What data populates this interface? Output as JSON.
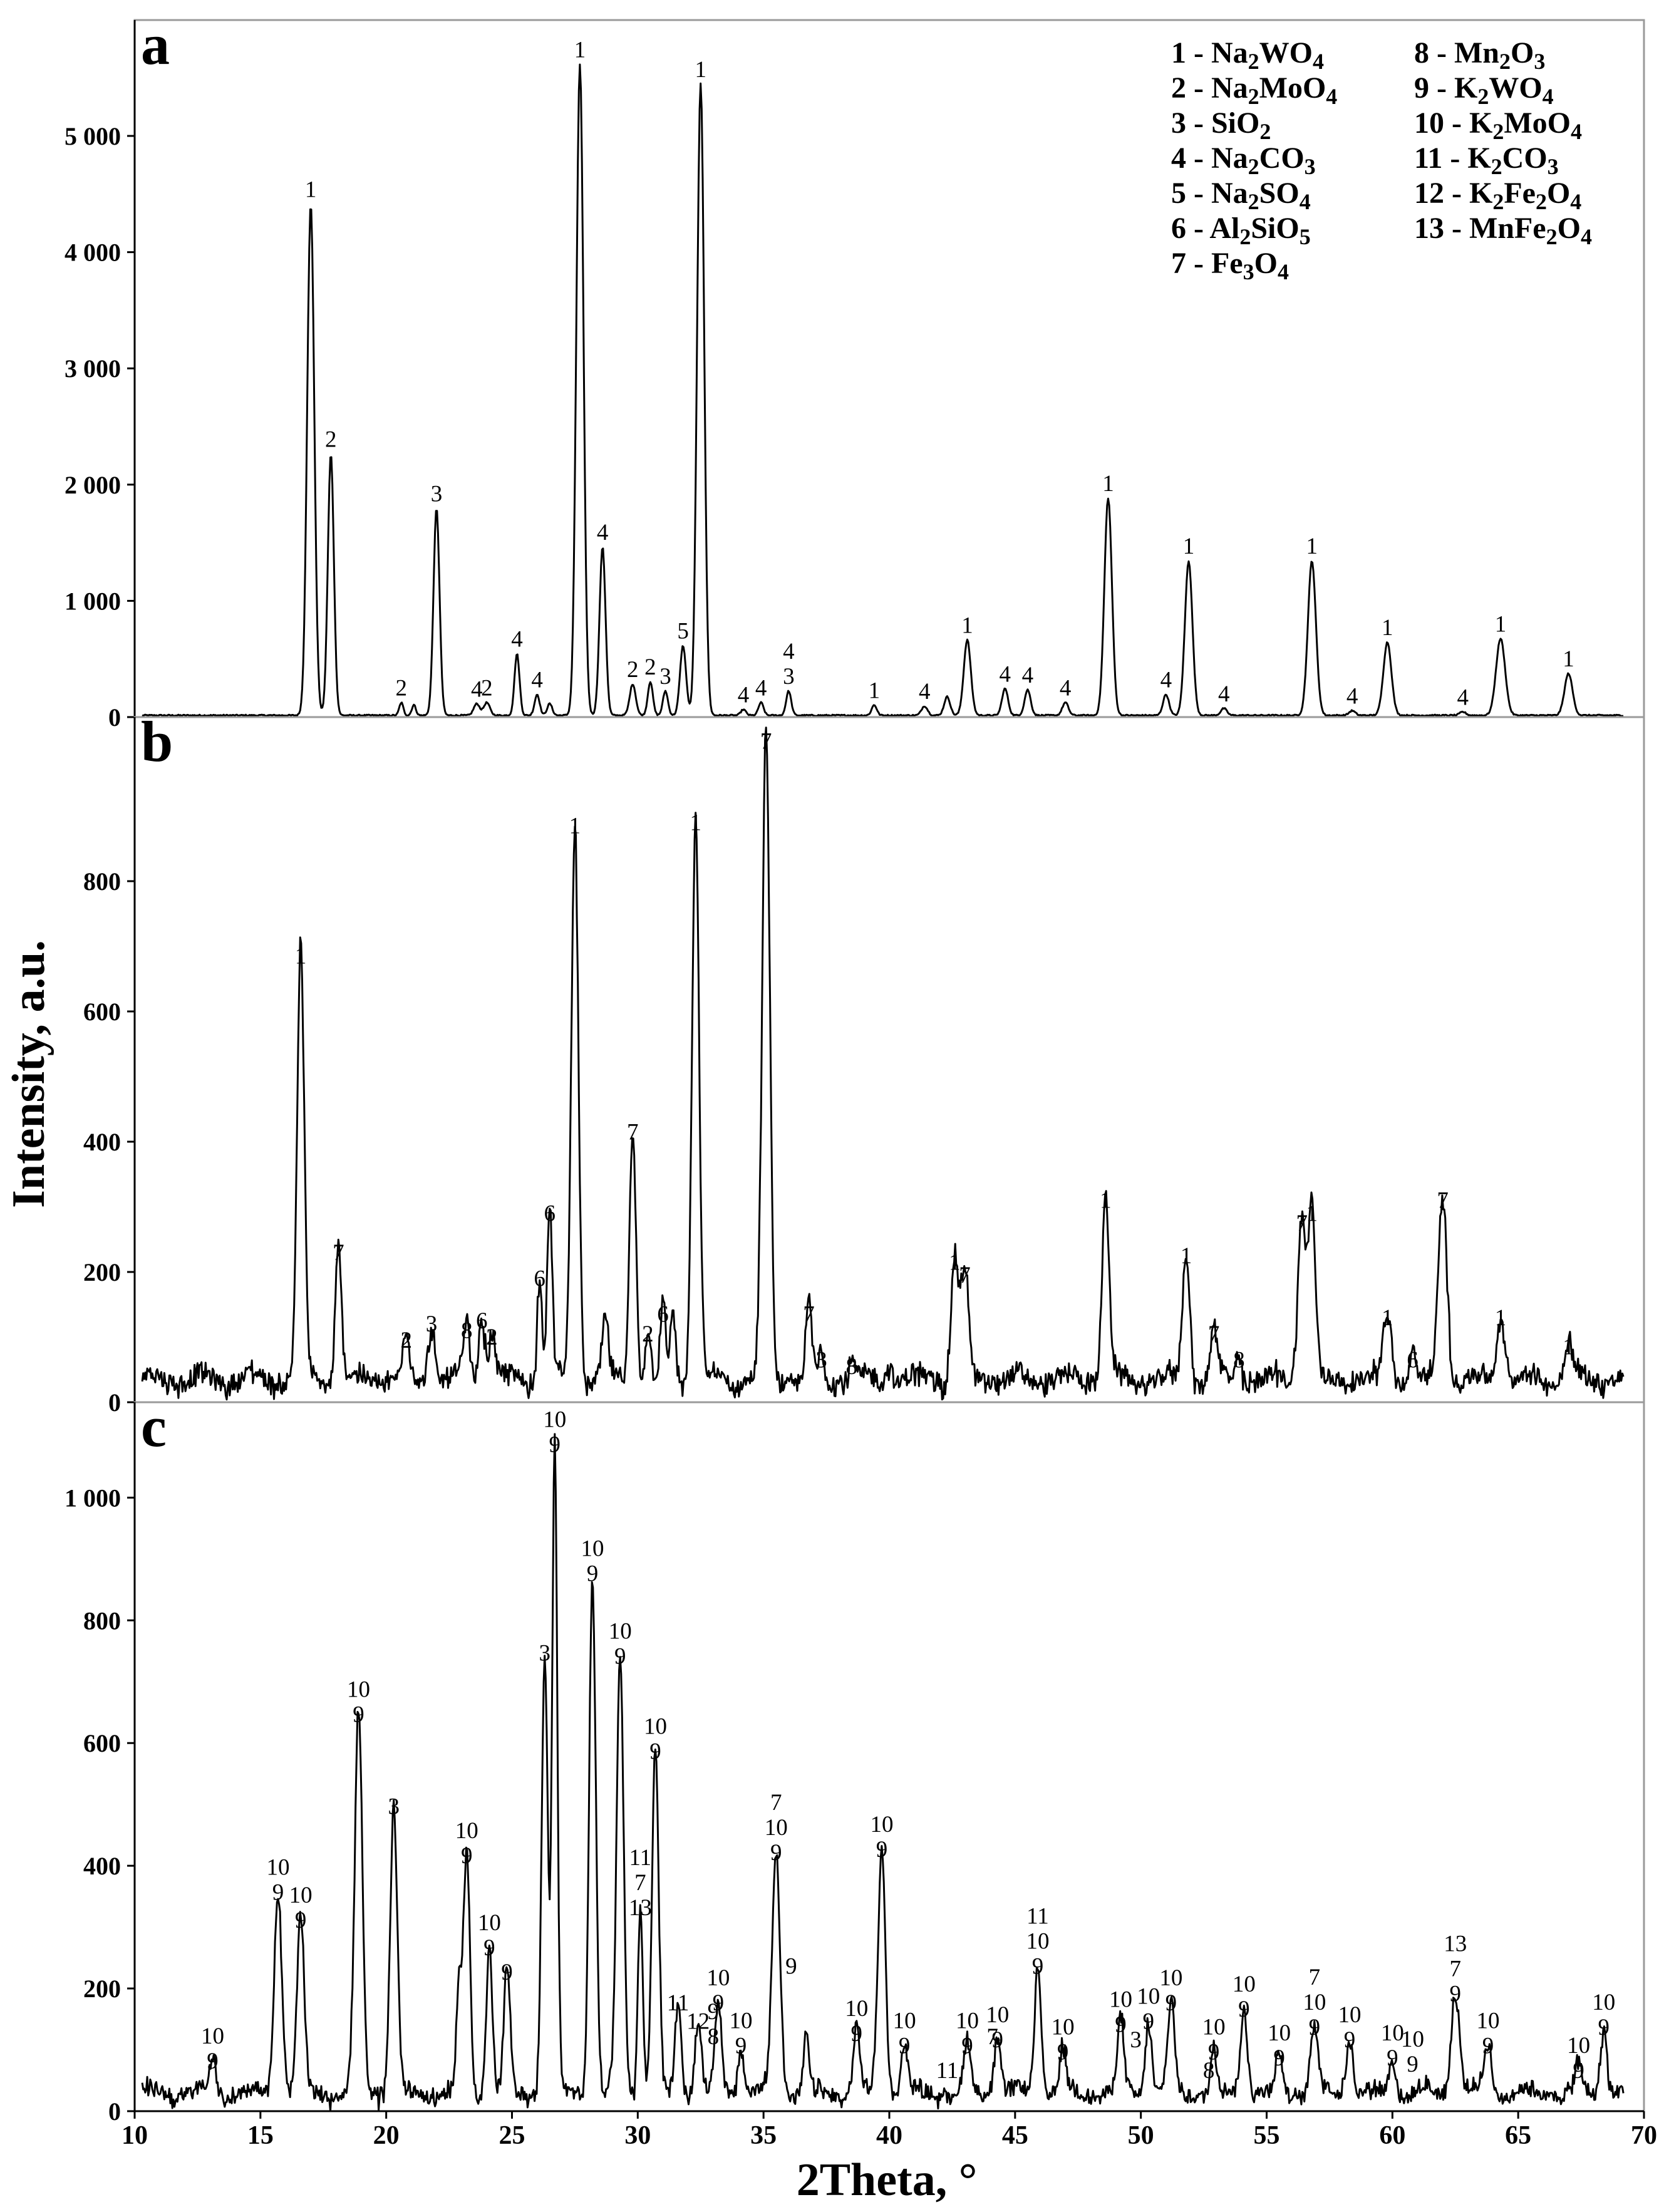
{
  "chart_data": {
    "type": "line",
    "xlabel": "2Theta, °",
    "ylabel": "Intensity, a.u.",
    "xlim": [
      10,
      70
    ],
    "x_ticks": [
      10,
      15,
      20,
      25,
      30,
      35,
      40,
      45,
      50,
      55,
      60,
      65,
      70
    ],
    "x_tick_labels": [
      "10",
      "15",
      "20",
      "25",
      "30",
      "35",
      "40",
      "45",
      "50",
      "55",
      "60",
      "65",
      "70"
    ],
    "legend": {
      "position": "top-right",
      "entries": [
        [
          "1 - Na",
          "2",
          "WO",
          "4"
        ],
        [
          "2 - Na",
          "2",
          "MoO",
          "4"
        ],
        [
          "3 - SiO",
          "2"
        ],
        [
          "4 - Na",
          "2",
          "CO",
          "3"
        ],
        [
          "5 - Na",
          "2",
          "SO",
          "4"
        ],
        [
          "6 - Al",
          "2",
          "SiO",
          "5"
        ],
        [
          "7 - Fe",
          "3",
          "O",
          "4"
        ],
        [
          "8 - Mn",
          "2",
          "O",
          "3"
        ],
        [
          "9 - K",
          "2",
          "WO",
          "4"
        ],
        [
          "10 - K",
          "2",
          "MoO",
          "4"
        ],
        [
          "11 - K",
          "2",
          "CO",
          "3"
        ],
        [
          "12 - K",
          "2",
          "Fe",
          "2",
          "O",
          "4"
        ],
        [
          "13 - MnFe",
          "2",
          "O",
          "4"
        ]
      ]
    },
    "panels": [
      {
        "label": "a",
        "ylim": [
          0,
          5900
        ],
        "y_ticks": [
          0,
          1000,
          2000,
          3000,
          4000,
          5000
        ],
        "y_tick_labels": [
          "0",
          "1 000",
          "2 000",
          "3 000",
          "4 000",
          "5 000"
        ],
        "baseline": 15,
        "peaks": [
          {
            "x": 17.0,
            "y": 4400,
            "w": 0.14,
            "label": "1"
          },
          {
            "x": 17.8,
            "y": 2250,
            "w": 0.12,
            "label": "2"
          },
          {
            "x": 20.6,
            "y": 110,
            "w": 0.08,
            "label": "2"
          },
          {
            "x": 21.1,
            "y": 90,
            "w": 0.08,
            "label": ""
          },
          {
            "x": 22.0,
            "y": 1780,
            "w": 0.12,
            "label": "3"
          },
          {
            "x": 23.6,
            "y": 100,
            "w": 0.12,
            "label": "4"
          },
          {
            "x": 24.0,
            "y": 110,
            "w": 0.12,
            "label": "2"
          },
          {
            "x": 25.2,
            "y": 530,
            "w": 0.1,
            "label": "4"
          },
          {
            "x": 26.0,
            "y": 180,
            "w": 0.1,
            "label": "4"
          },
          {
            "x": 26.5,
            "y": 100,
            "w": 0.1,
            "label": ""
          },
          {
            "x": 27.7,
            "y": 5600,
            "w": 0.14,
            "label": "1"
          },
          {
            "x": 28.6,
            "y": 1450,
            "w": 0.12,
            "label": "4"
          },
          {
            "x": 29.8,
            "y": 270,
            "w": 0.12,
            "label": "2"
          },
          {
            "x": 30.5,
            "y": 290,
            "w": 0.1,
            "label": "2"
          },
          {
            "x": 31.1,
            "y": 210,
            "w": 0.1,
            "label": "3"
          },
          {
            "x": 31.8,
            "y": 600,
            "w": 0.12,
            "label": "5"
          },
          {
            "x": 32.5,
            "y": 5430,
            "w": 0.14,
            "label": "1"
          },
          {
            "x": 34.2,
            "y": 50,
            "w": 0.1,
            "label": "4"
          },
          {
            "x": 34.9,
            "y": 110,
            "w": 0.1,
            "label": "4"
          },
          {
            "x": 36.0,
            "y": 210,
            "w": 0.1,
            "label": "4\n3"
          },
          {
            "x": 39.4,
            "y": 90,
            "w": 0.1,
            "label": "1"
          },
          {
            "x": 41.4,
            "y": 80,
            "w": 0.12,
            "label": "4"
          },
          {
            "x": 42.3,
            "y": 160,
            "w": 0.12,
            "label": ""
          },
          {
            "x": 43.1,
            "y": 650,
            "w": 0.14,
            "label": "1"
          },
          {
            "x": 44.6,
            "y": 230,
            "w": 0.12,
            "label": "4"
          },
          {
            "x": 45.5,
            "y": 220,
            "w": 0.12,
            "label": "4"
          },
          {
            "x": 47.0,
            "y": 110,
            "w": 0.12,
            "label": "4"
          },
          {
            "x": 48.7,
            "y": 1870,
            "w": 0.15,
            "label": "1"
          },
          {
            "x": 51.0,
            "y": 180,
            "w": 0.12,
            "label": "4"
          },
          {
            "x": 51.9,
            "y": 1330,
            "w": 0.15,
            "label": "1"
          },
          {
            "x": 53.3,
            "y": 60,
            "w": 0.12,
            "label": "4"
          },
          {
            "x": 56.8,
            "y": 1330,
            "w": 0.16,
            "label": "1"
          },
          {
            "x": 58.4,
            "y": 40,
            "w": 0.12,
            "label": "4"
          },
          {
            "x": 59.8,
            "y": 630,
            "w": 0.16,
            "label": "1"
          },
          {
            "x": 62.8,
            "y": 30,
            "w": 0.12,
            "label": "4"
          },
          {
            "x": 64.3,
            "y": 660,
            "w": 0.18,
            "label": "1"
          },
          {
            "x": 67.0,
            "y": 360,
            "w": 0.16,
            "label": "1"
          }
        ]
      },
      {
        "label": "b",
        "ylim": [
          0,
          1000
        ],
        "y_ticks": [
          0,
          200,
          400,
          600,
          800
        ],
        "y_tick_labels": [
          "0",
          "200",
          "400",
          "600",
          "800"
        ],
        "baseline": 35,
        "peaks": [
          {
            "x": 16.6,
            "y": 660,
            "w": 0.14,
            "label": "1"
          },
          {
            "x": 18.1,
            "y": 205,
            "w": 0.12,
            "label": "7"
          },
          {
            "x": 20.8,
            "y": 70,
            "w": 0.12,
            "label": "2"
          },
          {
            "x": 21.8,
            "y": 95,
            "w": 0.12,
            "label": "3"
          },
          {
            "x": 23.2,
            "y": 85,
            "w": 0.12,
            "label": "8"
          },
          {
            "x": 23.8,
            "y": 100,
            "w": 0.12,
            "label": "6"
          },
          {
            "x": 24.2,
            "y": 75,
            "w": 0.12,
            "label": "2"
          },
          {
            "x": 26.1,
            "y": 165,
            "w": 0.1,
            "label": "6"
          },
          {
            "x": 26.5,
            "y": 265,
            "w": 0.1,
            "label": "6"
          },
          {
            "x": 27.5,
            "y": 860,
            "w": 0.14,
            "label": "1"
          },
          {
            "x": 28.7,
            "y": 90,
            "w": 0.12,
            "label": ""
          },
          {
            "x": 29.8,
            "y": 390,
            "w": 0.13,
            "label": "7"
          },
          {
            "x": 30.4,
            "y": 80,
            "w": 0.1,
            "label": "2"
          },
          {
            "x": 31.0,
            "y": 110,
            "w": 0.1,
            "label": "6"
          },
          {
            "x": 31.4,
            "y": 110,
            "w": 0.1,
            "label": ""
          },
          {
            "x": 32.3,
            "y": 865,
            "w": 0.14,
            "label": "1"
          },
          {
            "x": 35.1,
            "y": 990,
            "w": 0.15,
            "label": "7"
          },
          {
            "x": 36.8,
            "y": 110,
            "w": 0.12,
            "label": "7"
          },
          {
            "x": 37.3,
            "y": 40,
            "w": 0.1,
            "label": "3"
          },
          {
            "x": 38.5,
            "y": 30,
            "w": 0.1,
            "label": "8"
          },
          {
            "x": 40.0,
            "y": 30,
            "w": 0.12,
            "label": ""
          },
          {
            "x": 42.6,
            "y": 190,
            "w": 0.14,
            "label": "1"
          },
          {
            "x": 43.0,
            "y": 170,
            "w": 0.14,
            "label": "7"
          },
          {
            "x": 48.6,
            "y": 285,
            "w": 0.14,
            "label": "1"
          },
          {
            "x": 51.8,
            "y": 200,
            "w": 0.14,
            "label": "1"
          },
          {
            "x": 52.9,
            "y": 80,
            "w": 0.13,
            "label": "7"
          },
          {
            "x": 53.9,
            "y": 40,
            "w": 0.1,
            "label": "8"
          },
          {
            "x": 56.4,
            "y": 250,
            "w": 0.16,
            "label": "7"
          },
          {
            "x": 56.8,
            "y": 265,
            "w": 0.14,
            "label": "1"
          },
          {
            "x": 59.8,
            "y": 105,
            "w": 0.16,
            "label": "1"
          },
          {
            "x": 60.8,
            "y": 40,
            "w": 0.12,
            "label": "6"
          },
          {
            "x": 62.0,
            "y": 285,
            "w": 0.17,
            "label": "7"
          },
          {
            "x": 64.3,
            "y": 105,
            "w": 0.16,
            "label": "1"
          },
          {
            "x": 67.0,
            "y": 60,
            "w": 0.16,
            "label": "1"
          }
        ]
      },
      {
        "label": "c",
        "ylim": [
          0,
          1130
        ],
        "y_ticks": [
          0,
          200,
          400,
          600,
          800,
          1000
        ],
        "y_tick_labels": [
          "0",
          "200",
          "400",
          "600",
          "800",
          "1 000"
        ],
        "baseline": 30,
        "peaks": [
          {
            "x": 13.1,
            "y": 55,
            "w": 0.12,
            "label": "10\n9"
          },
          {
            "x": 15.7,
            "y": 330,
            "w": 0.15,
            "label": "10\n9"
          },
          {
            "x": 16.6,
            "y": 285,
            "w": 0.14,
            "label": "10\n9"
          },
          {
            "x": 18.9,
            "y": 620,
            "w": 0.15,
            "label": "10\n9"
          },
          {
            "x": 20.3,
            "y": 470,
            "w": 0.14,
            "label": "3"
          },
          {
            "x": 22.9,
            "y": 165,
            "w": 0.1,
            "label": ""
          },
          {
            "x": 23.2,
            "y": 390,
            "w": 0.13,
            "label": "10\n9"
          },
          {
            "x": 24.1,
            "y": 240,
            "w": 0.12,
            "label": "10\n9"
          },
          {
            "x": 24.8,
            "y": 200,
            "w": 0.12,
            "label": "9"
          },
          {
            "x": 26.3,
            "y": 720,
            "w": 0.12,
            "label": "3"
          },
          {
            "x": 26.7,
            "y": 1060,
            "w": 0.1,
            "label": "10\n9"
          },
          {
            "x": 28.2,
            "y": 850,
            "w": 0.13,
            "label": "10\n9"
          },
          {
            "x": 29.3,
            "y": 715,
            "w": 0.14,
            "label": "10\n9"
          },
          {
            "x": 30.1,
            "y": 305,
            "w": 0.1,
            "label": "11\n7\n13"
          },
          {
            "x": 30.7,
            "y": 560,
            "w": 0.13,
            "label": "10\n9"
          },
          {
            "x": 31.6,
            "y": 150,
            "w": 0.12,
            "label": "11"
          },
          {
            "x": 32.4,
            "y": 120,
            "w": 0.12,
            "label": "12"
          },
          {
            "x": 33.2,
            "y": 150,
            "w": 0.13,
            "label": "10\n9"
          },
          {
            "x": 34.1,
            "y": 80,
            "w": 0.12,
            "label": "10\n9"
          },
          {
            "x": 35.5,
            "y": 395,
            "w": 0.16,
            "label": "7\n10\n9"
          },
          {
            "x": 36.7,
            "y": 90,
            "w": 0.1,
            "label": ""
          },
          {
            "x": 38.7,
            "y": 100,
            "w": 0.13,
            "label": "10\n9"
          },
          {
            "x": 39.7,
            "y": 400,
            "w": 0.15,
            "label": "10\n9"
          },
          {
            "x": 40.6,
            "y": 80,
            "w": 0.12,
            "label": "10\n9"
          },
          {
            "x": 43.1,
            "y": 80,
            "w": 0.13,
            "label": "10\n9"
          },
          {
            "x": 44.3,
            "y": 90,
            "w": 0.13,
            "label": "10\n9"
          },
          {
            "x": 45.9,
            "y": 210,
            "w": 0.13,
            "label": "11\n10\n9"
          },
          {
            "x": 46.9,
            "y": 70,
            "w": 0.12,
            "label": "10\n9"
          },
          {
            "x": 49.2,
            "y": 115,
            "w": 0.13,
            "label": "10\n9"
          },
          {
            "x": 50.3,
            "y": 120,
            "w": 0.13,
            "label": "10\n9"
          },
          {
            "x": 51.2,
            "y": 150,
            "w": 0.13,
            "label": "10\n9"
          },
          {
            "x": 52.9,
            "y": 70,
            "w": 0.12,
            "label": "10\n9"
          },
          {
            "x": 54.1,
            "y": 140,
            "w": 0.14,
            "label": "10\n9"
          },
          {
            "x": 55.5,
            "y": 60,
            "w": 0.13,
            "label": "10\n9"
          },
          {
            "x": 56.9,
            "y": 110,
            "w": 0.15,
            "label": "7\n10\n9"
          },
          {
            "x": 58.3,
            "y": 90,
            "w": 0.14,
            "label": "10\n9"
          },
          {
            "x": 60.0,
            "y": 60,
            "w": 0.13,
            "label": "10\n9"
          },
          {
            "x": 62.5,
            "y": 165,
            "w": 0.17,
            "label": "13\n7\n9"
          },
          {
            "x": 63.8,
            "y": 80,
            "w": 0.14,
            "label": "10\n9"
          },
          {
            "x": 67.4,
            "y": 40,
            "w": 0.13,
            "label": "10\n9"
          },
          {
            "x": 68.4,
            "y": 110,
            "w": 0.13,
            "label": "10\n9"
          }
        ],
        "extra_labels": [
          {
            "x": 33.0,
            "y": 95,
            "label": "9\n8"
          },
          {
            "x": 36.1,
            "y": 210,
            "label": "9"
          },
          {
            "x": 42.3,
            "y": 40,
            "label": "11"
          },
          {
            "x": 44.1,
            "y": 95,
            "label": "7"
          },
          {
            "x": 49.8,
            "y": 90,
            "label": "3"
          },
          {
            "x": 52.7,
            "y": 40,
            "label": "8"
          },
          {
            "x": 60.8,
            "y": 50,
            "label": "10\n9"
          }
        ]
      }
    ]
  }
}
